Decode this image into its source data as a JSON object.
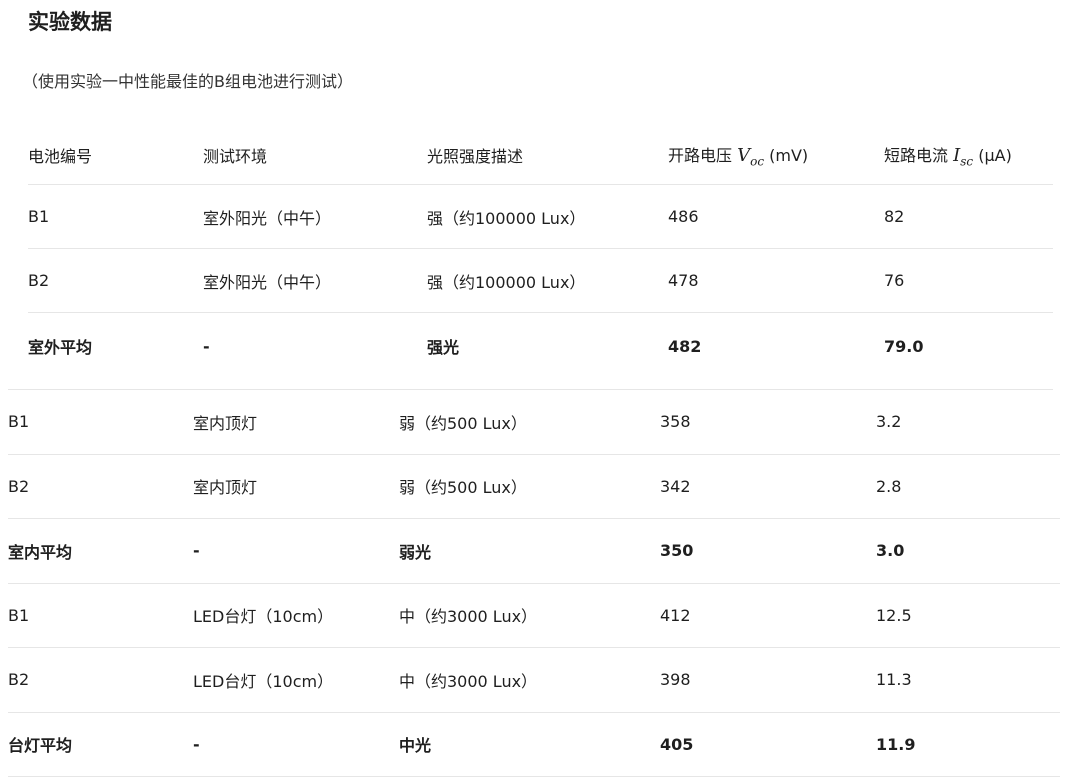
{
  "title": "实验数据",
  "subtitle": "（使用实验一中性能最佳的B组电池进行测试）",
  "table": {
    "headers": {
      "battery": "电池编号",
      "environment": "测试环境",
      "light": "光照强度描述",
      "voc_prefix": "开路电压",
      "voc_symbol": "V",
      "voc_sub": "oc",
      "voc_unit": "(mV)",
      "isc_prefix": "短路电流",
      "isc_symbol": "I",
      "isc_sub": "sc",
      "isc_unit": "(μA)"
    },
    "outdoor_rows": [
      {
        "battery": "B1",
        "environment": "室外阳光（中午）",
        "light": "强（约100000 Lux）",
        "voc": "486",
        "isc": "82"
      },
      {
        "battery": "B2",
        "environment": "室外阳光（中午）",
        "light": "强（约100000 Lux）",
        "voc": "478",
        "isc": "76"
      },
      {
        "battery": "室外平均",
        "environment": "-",
        "light": "强光",
        "voc": "482",
        "isc": "79.0"
      }
    ],
    "other_rows": [
      {
        "battery": "B1",
        "environment": "室内顶灯",
        "light": "弱（约500 Lux）",
        "voc": "358",
        "isc": "3.2"
      },
      {
        "battery": "B2",
        "environment": "室内顶灯",
        "light": "弱（约500 Lux）",
        "voc": "342",
        "isc": "2.8"
      },
      {
        "battery": "室内平均",
        "environment": "-",
        "light": "弱光",
        "voc": "350",
        "isc": "3.0"
      },
      {
        "battery": "B1",
        "environment": "LED台灯（10cm）",
        "light": "中（约3000 Lux）",
        "voc": "412",
        "isc": "12.5"
      },
      {
        "battery": "B2",
        "environment": "LED台灯（10cm）",
        "light": "中（约3000 Lux）",
        "voc": "398",
        "isc": "11.3"
      },
      {
        "battery": "台灯平均",
        "environment": "-",
        "light": "中光",
        "voc": "405",
        "isc": "11.9"
      }
    ]
  }
}
